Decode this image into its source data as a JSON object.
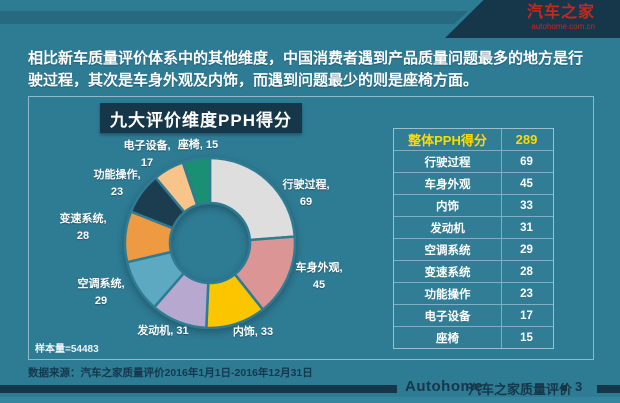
{
  "theme": {
    "background": "#2e7b94",
    "band": "#27697f",
    "dark_navy": "#16374a",
    "accent_yellow": "#ffd900",
    "logo_red": "#c5281e",
    "text_white": "#ffffff"
  },
  "header": {
    "logo_title": "汽车之家",
    "logo_subtitle": "autohome.com.cn"
  },
  "intro_text": "相比新车质量评价体系中的其他维度，中国消费者遇到产品质量问题最多的地方是行驶过程，其次是车身外观及内饰，而遇到问题最少的则是座椅方面。",
  "panel": {
    "chart_title": "九大评价维度PPH得分",
    "sample_note": "样本量=54483"
  },
  "chart_data": {
    "type": "pie",
    "donut": true,
    "title": "九大评价维度PPH得分",
    "categories": [
      "行驶过程",
      "车身外观",
      "内饰",
      "发动机",
      "空调系统",
      "变速系统",
      "功能操作",
      "电子设备",
      "座椅"
    ],
    "values": [
      69,
      45,
      33,
      31,
      29,
      28,
      23,
      17,
      15
    ],
    "colors": [
      "#dedede",
      "#dc9595",
      "#fbc500",
      "#b7a8cf",
      "#5ea9c2",
      "#ee9a43",
      "#1c3c50",
      "#f9c489",
      "#1a8f74"
    ],
    "labels": [
      {
        "line1": "行驶过程,",
        "line2": "69"
      },
      {
        "line1": "车身外观,",
        "line2": "45"
      },
      {
        "line1": "内饰, 33"
      },
      {
        "line1": "发动机, 31"
      },
      {
        "line1": "空调系统,",
        "line2": "29"
      },
      {
        "line1": "变速系统,",
        "line2": "28"
      },
      {
        "line1": "功能操作,",
        "line2": "23"
      },
      {
        "line1": "电子设备,",
        "line2": "17"
      },
      {
        "line1": "座椅, 15"
      }
    ],
    "total_label": "整体PPH得分",
    "total": 289,
    "legend_position": "none",
    "start_angle_deg": 0,
    "direction": "clockwise"
  },
  "table": {
    "header": {
      "label": "整体PPH得分",
      "value": "289"
    },
    "rows": [
      {
        "label": "行驶过程",
        "value": "69"
      },
      {
        "label": "车身外观",
        "value": "45"
      },
      {
        "label": "内饰",
        "value": "33"
      },
      {
        "label": "发动机",
        "value": "31"
      },
      {
        "label": "空调系统",
        "value": "29"
      },
      {
        "label": "变速系统",
        "value": "28"
      },
      {
        "label": "功能操作",
        "value": "23"
      },
      {
        "label": "电子设备",
        "value": "17"
      },
      {
        "label": "座椅",
        "value": "15"
      }
    ]
  },
  "source_note": "数据来源：汽车之家质量评价2016年1月1日-2016年12月31日",
  "footer": {
    "brand": "Autohome",
    "title": "汽车之家质量评价",
    "page": "3"
  }
}
